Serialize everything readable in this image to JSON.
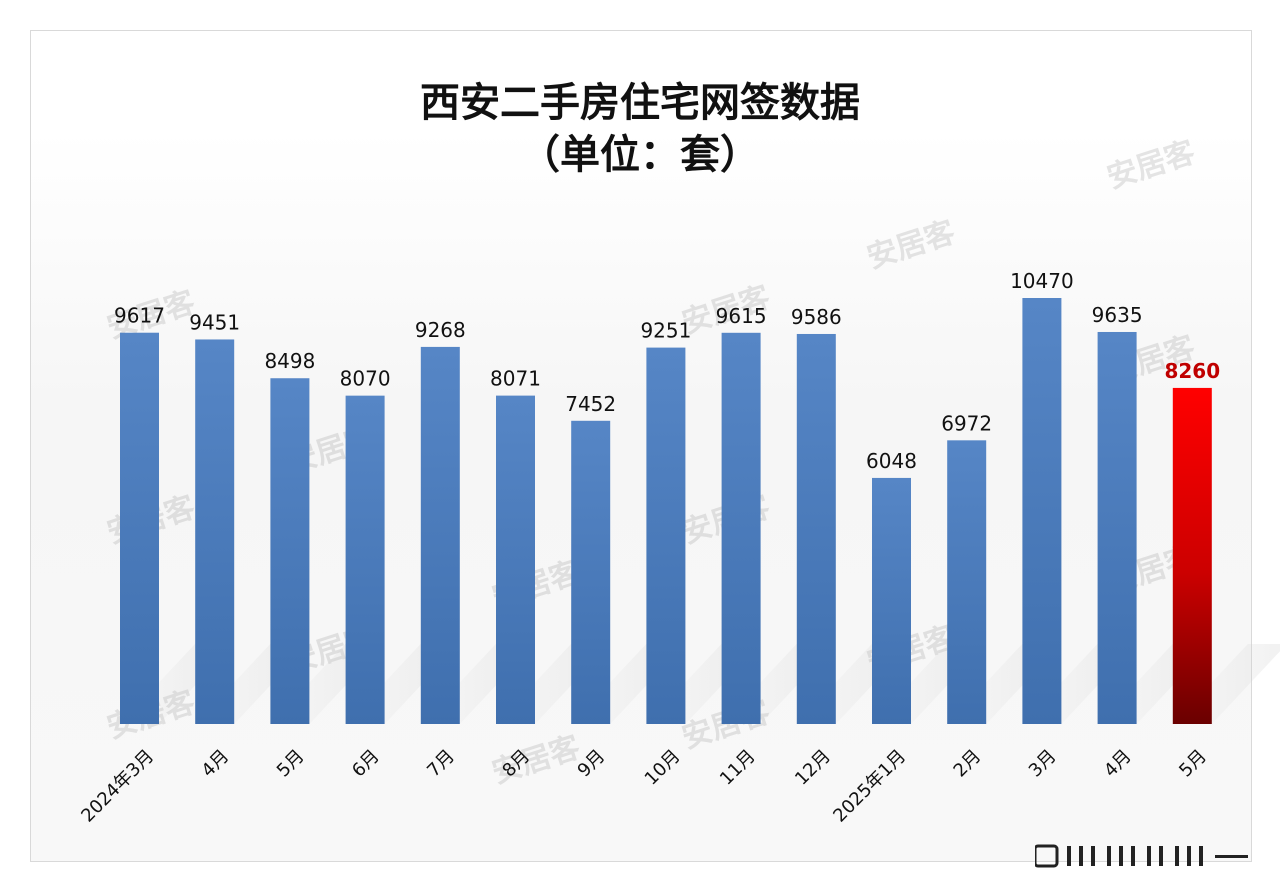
{
  "title_line1": "西安二手房住宅网签数据",
  "title_line2": "（单位：套）",
  "watermark": "安居客",
  "colors": {
    "bar": "#4f7fbf",
    "highlight": "#e00000",
    "highlight_label": "#c00000"
  },
  "chart_data": {
    "type": "bar",
    "title": "西安二手房住宅网签数据（单位：套）",
    "categories": [
      "2024年3月",
      "4月",
      "5月",
      "6月",
      "7月",
      "8月",
      "9月",
      "10月",
      "11月",
      "12月",
      "2025年1月",
      "2月",
      "3月",
      "4月",
      "5月"
    ],
    "values": [
      9617,
      9451,
      8498,
      8070,
      9268,
      8071,
      7452,
      9251,
      9615,
      9586,
      6048,
      6972,
      10470,
      9635,
      8260
    ],
    "value_labels": [
      "9617",
      "9451",
      "8498",
      "8070",
      "9268",
      "8071",
      "7452",
      "9251",
      "9615",
      "9586",
      "6048",
      "6972",
      "10470",
      "9635",
      "8260"
    ],
    "highlight_index": 14,
    "xlabel": "",
    "ylabel": "",
    "ylim": [
      0,
      10470
    ],
    "grid": false,
    "legend": "none"
  }
}
